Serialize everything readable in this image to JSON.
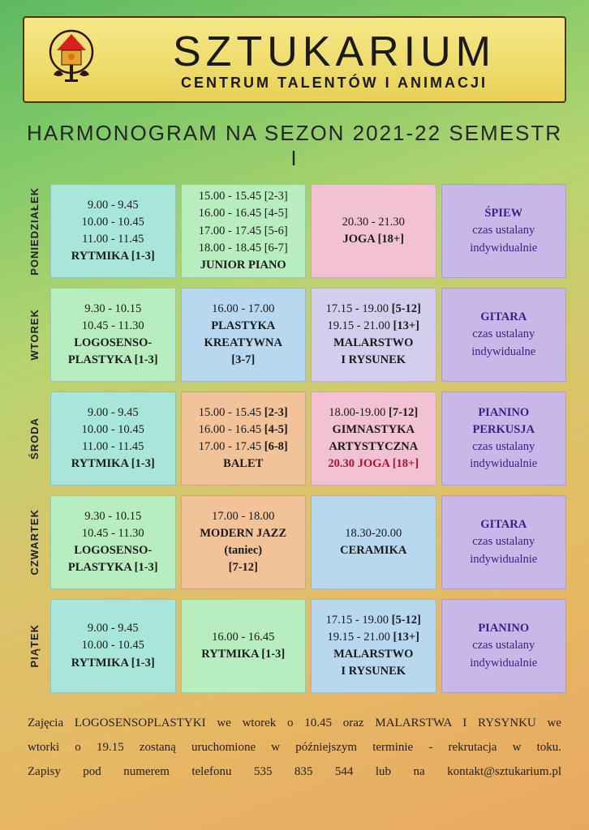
{
  "logo": {
    "title": "SZTUKARIUM",
    "subtitle": "CENTRUM TALENTÓW I ANIMACJI",
    "icon_colors": {
      "roof": "#d92020",
      "wall": "#e8a030",
      "leaf": "#2a1810",
      "circle": "#2a1810"
    }
  },
  "heading": "HARMONOGRAM NA SEZON 2021-22 SEMESTR I",
  "colors": {
    "teal": "#a8e6d9",
    "green": "#b8edc0",
    "blue": "#b8d8f0",
    "pink": "#f2c2d4",
    "purple": "#c8b8e8",
    "orange": "#f2c299",
    "lav": "#d4cded"
  },
  "days": [
    {
      "label": "PONIEDZIAŁEK",
      "cells": [
        {
          "color": "teal",
          "lines": [
            "9.00 - 9.45",
            "10.00 - 10.45",
            "11.00 - 11.45"
          ],
          "bold": "RYTMIKA [1-3]"
        },
        {
          "color": "green",
          "lines": [
            "15.00 - 15.45 [2-3]",
            "16.00 - 16.45 [4-5]",
            "17.00 - 17.45 [5-6]",
            "18.00 - 18.45 [6-7]"
          ],
          "bold": "JUNIOR PIANO"
        },
        {
          "color": "pink",
          "lines": [
            "20.30 - 21.30"
          ],
          "bold": "JOGA  [18+]"
        },
        {
          "color": "purple",
          "boldfirst": "ŚPIEW",
          "purplelines": [
            "czas ustalany",
            "indywidualnie"
          ]
        }
      ]
    },
    {
      "label": "WTOREK",
      "cells": [
        {
          "color": "green",
          "lines": [
            "9.30 - 10.15",
            "10.45 - 11.30"
          ],
          "boldlines": [
            "LOGOSENSO-",
            "PLASTYKA  [1-3]"
          ]
        },
        {
          "color": "blue",
          "lines": [
            "16.00 - 17.00"
          ],
          "boldlines": [
            "PLASTYKA",
            "KREATYWNA",
            "[3-7]"
          ]
        },
        {
          "color": "lav",
          "boldlines_top": [
            "17.15 - 19.00 [5-12]",
            "19.15 - 21.00 [13+]"
          ],
          "boldlines": [
            "MALARSTWO",
            "I RYSUNEK"
          ]
        },
        {
          "color": "purple",
          "boldfirst": "GITARA",
          "purplelines": [
            "czas ustalany",
            "indywidualne"
          ]
        }
      ]
    },
    {
      "label": "ŚRODA",
      "cells": [
        {
          "color": "teal",
          "lines": [
            "9.00 - 9.45",
            "10.00 - 10.45",
            "11.00 - 11.45"
          ],
          "bold": "RYTMIKA [1-3]"
        },
        {
          "color": "orange",
          "boldlines_top": [
            "15.00 - 15.45 [2-3]",
            "16.00 - 16.45 [4-5]",
            "17.00 - 17.45 [6-8]"
          ],
          "bold": "BALET"
        },
        {
          "color": "pink",
          "boldlines_top": [
            "18.00-19.00  [7-12]"
          ],
          "boldlines": [
            "GIMNASTYKA",
            "ARTYSTYCZNA"
          ],
          "red": "20.30 JOGA  [18+]"
        },
        {
          "color": "purple",
          "boldfirst2": [
            "PIANINO",
            "PERKUSJA"
          ],
          "purplelines": [
            "czas ustalany",
            "indywidualnie"
          ]
        }
      ]
    },
    {
      "label": "CZWARTEK",
      "cells": [
        {
          "color": "green",
          "lines": [
            "9.30 - 10.15",
            "10.45 - 11.30"
          ],
          "boldlines": [
            "LOGOSENSO-",
            "PLASTYKA  [1-3]"
          ]
        },
        {
          "color": "orange",
          "lines": [
            "17.00 - 18.00"
          ],
          "boldlines": [
            "MODERN JAZZ",
            "(taniec)",
            "[7-12]"
          ]
        },
        {
          "color": "blue",
          "lines": [
            "18.30-20.00"
          ],
          "bold": "CERAMIKA"
        },
        {
          "color": "purple",
          "boldfirst": "GITARA",
          "purplelines": [
            "czas ustalany",
            "indywidualnie"
          ]
        }
      ]
    },
    {
      "label": "PIĄTEK",
      "cells": [
        {
          "color": "teal",
          "lines": [
            "9.00 - 9.45",
            "10.00 - 10.45"
          ],
          "bold": "RYTMIKA [1-3]"
        },
        {
          "color": "green",
          "lines": [
            "16.00 - 16.45"
          ],
          "bold": "RYTMIKA  [1-3]"
        },
        {
          "color": "blue",
          "boldlines_top": [
            "17.15 - 19.00 [5-12]",
            "19.15 - 21.00 [13+]"
          ],
          "boldlines": [
            "MALARSTWO",
            "I RYSUNEK"
          ]
        },
        {
          "color": "purple",
          "boldfirst": "PIANINO",
          "purplelines": [
            "czas ustalany",
            "indywidualnie"
          ]
        }
      ]
    }
  ],
  "footer": {
    "l1": "Zajęcia LOGOSENSOPLASTYKI we wtorek o 10.45 oraz MALARSTWA I RYSYNKU  we",
    "l2": "wtorki o 19.15 zostaną uruchomione w późniejszym terminie - rekrutacja w toku.",
    "l3": "Zapisy pod numerem telefonu 535 835 544 lub na kontakt@sztukarium.pl"
  }
}
